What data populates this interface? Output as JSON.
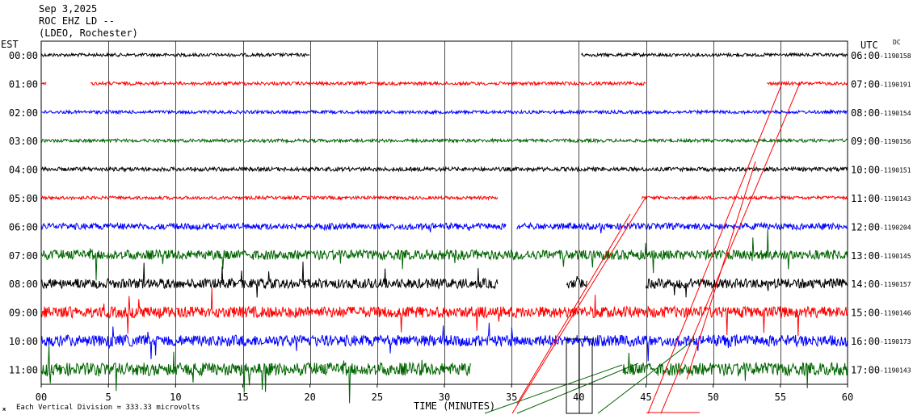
{
  "header": {
    "date": "Sep 3,2025",
    "station": "ROC EHZ LD --",
    "network": "(LDEO, Rochester)"
  },
  "chart_data": {
    "type": "line",
    "left_zone": "EST",
    "right_zone": "UTC",
    "dc_label": "DC",
    "xlabel": "TIME (MINUTES)",
    "xlim": [
      0,
      60
    ],
    "x_ticks": [
      "00",
      "5",
      "10",
      "15",
      "20",
      "25",
      "30",
      "35",
      "40",
      "45",
      "50",
      "55",
      "60"
    ],
    "footer": "Each Vertical Division = 333.33 microvolts",
    "rows": [
      {
        "local": "00:00",
        "utc": "06:00",
        "dc": "-1190158",
        "color": "#000000",
        "amp": 2,
        "spikes": 0,
        "segments": [
          [
            0,
            20
          ],
          [
            40.2,
            60
          ]
        ]
      },
      {
        "local": "01:00",
        "utc": "07:00",
        "dc": "-1190191",
        "color": "#ff0000",
        "amp": 2,
        "spikes": 0,
        "segments": [
          [
            0,
            0.4
          ],
          [
            3.7,
            45
          ],
          [
            54,
            60
          ]
        ]
      },
      {
        "local": "02:00",
        "utc": "08:00",
        "dc": "-1190154",
        "color": "#0000ff",
        "amp": 2,
        "spikes": 0,
        "segments": [
          [
            0,
            60
          ]
        ]
      },
      {
        "local": "03:00",
        "utc": "09:00",
        "dc": "-1190156",
        "color": "#006400",
        "amp": 2,
        "spikes": 0,
        "segments": [
          [
            0,
            60
          ]
        ]
      },
      {
        "local": "04:00",
        "utc": "10:00",
        "dc": "-1190151",
        "color": "#000000",
        "amp": 2.5,
        "spikes": 0,
        "segments": [
          [
            0,
            60
          ]
        ]
      },
      {
        "local": "05:00",
        "utc": "11:00",
        "dc": "-1190143",
        "color": "#ff0000",
        "amp": 2,
        "spikes": 0,
        "segments": [
          [
            0,
            34
          ],
          [
            44.7,
            60
          ]
        ]
      },
      {
        "local": "06:00",
        "utc": "12:00",
        "dc": "-1190204",
        "color": "#0000ff",
        "amp": 4,
        "spikes": 10,
        "segments": [
          [
            0,
            34.6
          ],
          [
            35.4,
            60
          ]
        ]
      },
      {
        "local": "07:00",
        "utc": "13:00",
        "dc": "-1190145",
        "color": "#006400",
        "amp": 6,
        "spikes": 22,
        "segments": [
          [
            0,
            60
          ]
        ]
      },
      {
        "local": "08:00",
        "utc": "14:00",
        "dc": "-1190157",
        "color": "#000000",
        "amp": 6,
        "spikes": 18,
        "segments": [
          [
            0,
            34
          ],
          [
            39.1,
            40.6
          ],
          [
            45,
            60
          ]
        ]
      },
      {
        "local": "09:00",
        "utc": "15:00",
        "dc": "-1190146",
        "color": "#ff0000",
        "amp": 7,
        "spikes": 22,
        "segments": [
          [
            0,
            60
          ]
        ]
      },
      {
        "local": "10:00",
        "utc": "16:00",
        "dc": "-1190173",
        "color": "#0000ff",
        "amp": 7,
        "spikes": 22,
        "segments": [
          [
            0,
            60
          ]
        ]
      },
      {
        "local": "11:00",
        "utc": "17:00",
        "dc": "-1190143",
        "color": "#006400",
        "amp": 8,
        "spikes": 20,
        "segments": [
          [
            0,
            32
          ],
          [
            43.3,
            60
          ]
        ]
      }
    ],
    "grid": true
  }
}
